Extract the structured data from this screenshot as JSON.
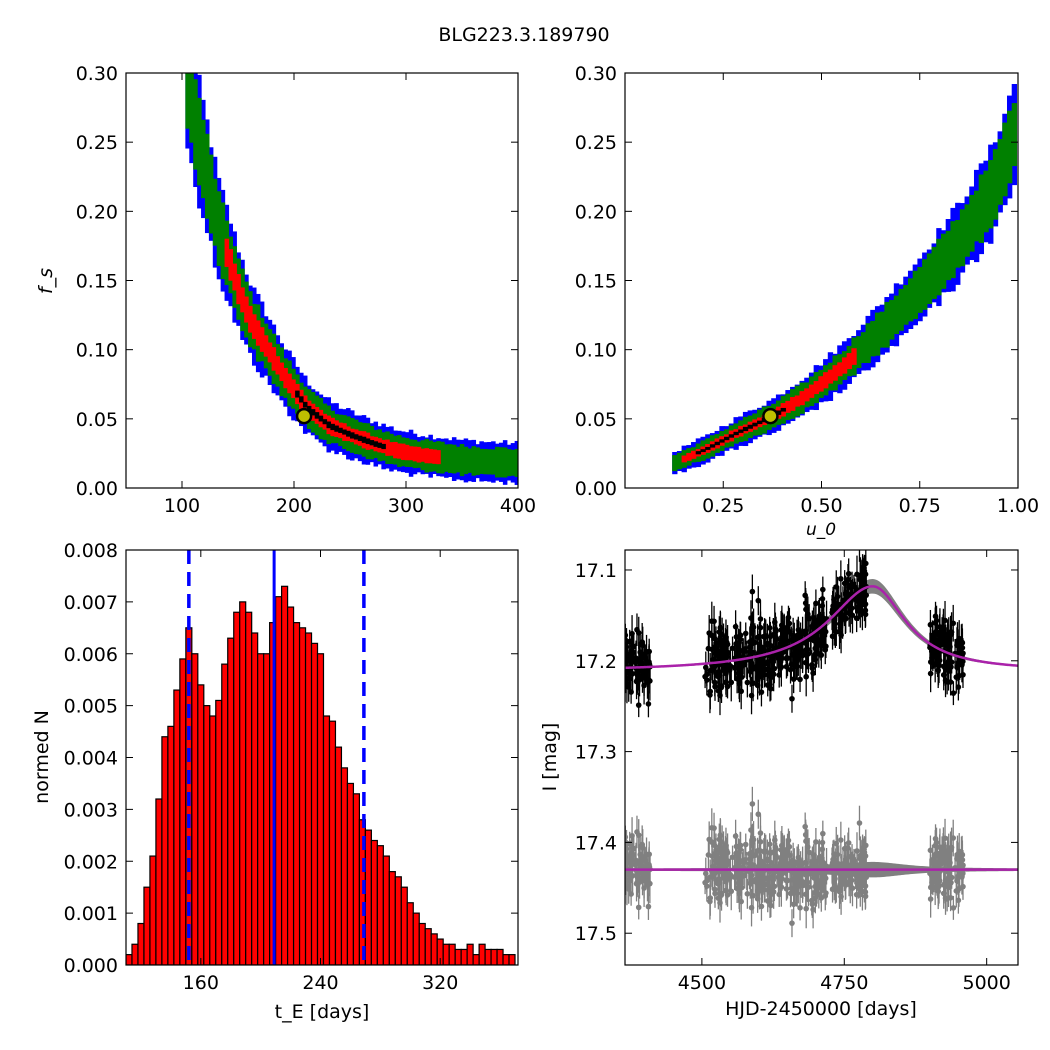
{
  "figure": {
    "title": "BLG223.3.189790"
  },
  "colors": {
    "blue": "#0000ff",
    "green": "#008000",
    "red": "#ff0000",
    "black": "#000000",
    "gray": "#808080",
    "purple": "#aa22aa",
    "hist_fill": "#ff0000",
    "marker_face": "#bfbf00"
  },
  "chart_data": [
    {
      "id": "tE_fs",
      "type": "heatmap",
      "title": "",
      "xlabel": "",
      "ylabel": "f_s",
      "xlim": [
        50,
        400
      ],
      "ylim": [
        0.0,
        0.3
      ],
      "xticks": [
        100,
        200,
        300,
        400
      ],
      "yticks": [
        "0.00",
        "0.05",
        "0.10",
        "0.15",
        "0.20",
        "0.25",
        "0.30"
      ],
      "confidence_levels": [
        "blue",
        "green",
        "red",
        "black"
      ],
      "ridge": {
        "x": [
          103,
          108,
          115,
          122,
          130,
          140,
          150,
          160,
          175,
          190,
          210,
          230,
          250,
          270,
          290,
          310,
          330,
          350,
          370,
          400
        ],
        "y": [
          0.295,
          0.27,
          0.245,
          0.22,
          0.19,
          0.165,
          0.14,
          0.12,
          0.1,
          0.08,
          0.058,
          0.045,
          0.038,
          0.032,
          0.027,
          0.024,
          0.022,
          0.02,
          0.019,
          0.018
        ]
      },
      "best_fit": {
        "x": 209,
        "y": 0.052
      }
    },
    {
      "id": "u0_fs",
      "type": "heatmap",
      "title": "",
      "xlabel": "u_0",
      "ylabel": "",
      "xlim": [
        0.0,
        1.0
      ],
      "ylim": [
        0.0,
        0.3
      ],
      "xticks": [
        "0.25",
        "0.50",
        "0.75",
        "1.00"
      ],
      "yticks": [
        "0.00",
        "0.05",
        "0.10",
        "0.15",
        "0.20",
        "0.25",
        "0.30"
      ],
      "confidence_levels": [
        "blue",
        "green",
        "red",
        "black"
      ],
      "ridge": {
        "x": [
          0.12,
          0.2,
          0.28,
          0.37,
          0.45,
          0.55,
          0.65,
          0.75,
          0.85,
          0.93,
          0.99
        ],
        "y": [
          0.018,
          0.028,
          0.04,
          0.052,
          0.066,
          0.088,
          0.115,
          0.145,
          0.18,
          0.215,
          0.26
        ]
      },
      "best_fit": {
        "x": 0.37,
        "y": 0.052
      }
    },
    {
      "id": "tE_hist",
      "type": "bar",
      "title": "",
      "xlabel": "t_E  [days]",
      "ylabel": "normed N",
      "xlim": [
        110,
        372
      ],
      "ylim": [
        0.0,
        0.008
      ],
      "xticks": [
        160,
        240,
        320
      ],
      "yticks": [
        "0.000",
        "0.001",
        "0.002",
        "0.003",
        "0.004",
        "0.005",
        "0.006",
        "0.007",
        "0.008"
      ],
      "bin_start": 110,
      "bin_width": 4,
      "values": [
        0.0002,
        0.0004,
        0.0008,
        0.0015,
        0.0021,
        0.0032,
        0.0044,
        0.0046,
        0.0053,
        0.0059,
        0.0065,
        0.006,
        0.0054,
        0.005,
        0.0048,
        0.0051,
        0.0058,
        0.0063,
        0.0068,
        0.007,
        0.0068,
        0.0064,
        0.006,
        0.006,
        0.0066,
        0.0071,
        0.0073,
        0.0069,
        0.0066,
        0.0065,
        0.0064,
        0.0062,
        0.006,
        0.0048,
        0.0047,
        0.0042,
        0.0038,
        0.0035,
        0.0033,
        0.0028,
        0.0026,
        0.0024,
        0.0023,
        0.0021,
        0.0018,
        0.0017,
        0.0015,
        0.0012,
        0.001,
        0.0008,
        0.0007,
        0.0006,
        0.0005,
        0.0004,
        0.0004,
        0.0003,
        0.0003,
        0.0004,
        0.0002,
        0.0004,
        0.0003,
        0.0003,
        0.0003,
        0.0002,
        0.0002
      ],
      "median_line": 209,
      "interval_lines": [
        152,
        269
      ]
    },
    {
      "id": "lightcurve",
      "type": "scatter",
      "title": "",
      "xlabel": "HJD-2450000 [days]",
      "ylabel": "I [mag]",
      "xlim": [
        4365,
        5055
      ],
      "ylim": [
        17.535,
        17.078
      ],
      "y_inverted": true,
      "xticks": [
        4500,
        4750,
        5000
      ],
      "yticks": [
        "17.1",
        "17.2",
        "17.3",
        "17.4",
        "17.5"
      ],
      "seasons": [
        [
          4365,
          4410
        ],
        [
          4505,
          4720
        ],
        [
          4728,
          4790
        ],
        [
          4900,
          4960
        ]
      ],
      "data_base_mag": 17.2,
      "model": {
        "baseline": 17.212,
        "peak_mag": 17.118,
        "peak_t": 4800,
        "width": 85,
        "asym_left": 95,
        "asym_right": 70
      },
      "residual_offset": 17.43,
      "residual_line": 17.43
    }
  ]
}
